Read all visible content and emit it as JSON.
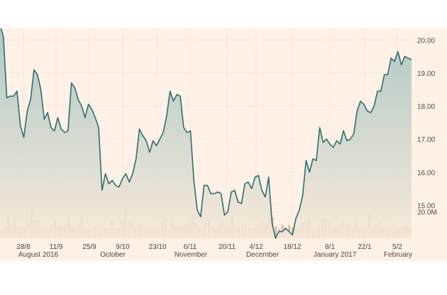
{
  "chart_data": {
    "type": "line",
    "title": "",
    "xlabel": "",
    "ylabel": "",
    "ylim": [
      14.0,
      20.35
    ],
    "yticks": [
      "20.00",
      "19.00",
      "18.00",
      "17.00",
      "16.00",
      "15.00"
    ],
    "y_tick_values": [
      20,
      19,
      18,
      17,
      16,
      15
    ],
    "x_tick_labels": [
      "28/8",
      "11/9",
      "25/9",
      "9/10",
      "23/10",
      "6/11",
      "20/11",
      "4/12",
      "18/12",
      "8/1",
      "22/1",
      "5/2"
    ],
    "x_month_labels": [
      "August 2016",
      "October",
      "November",
      "December",
      "January 2017",
      "February"
    ],
    "volume_label": "20.0M",
    "volume_tick_value": 20,
    "grid": true,
    "colors": {
      "background": "#fff1e5",
      "line": "#2e6e73",
      "area_top": "#9fc2bf",
      "area_bottom": "#f7e8d8",
      "volume_bars": "#d4bfb0",
      "grid": "#e6d4c4",
      "text": "#4d4845"
    },
    "series": [
      {
        "values": [
          20.45,
          20.1,
          18.25,
          18.3,
          18.3,
          18.45,
          17.4,
          17.05,
          17.85,
          18.2,
          19.1,
          18.95,
          18.5,
          17.6,
          17.8,
          17.35,
          17.25,
          17.65,
          17.3,
          17.2,
          17.25,
          18.7,
          18.55,
          18.2,
          18.0,
          17.65,
          18.05,
          17.9,
          17.65,
          17.35,
          15.45,
          15.95,
          15.65,
          15.75,
          15.6,
          15.55,
          15.8,
          15.95,
          15.7,
          15.95,
          16.4,
          17.3,
          17.1,
          16.95,
          16.6,
          16.95,
          16.8,
          17.0,
          17.2,
          17.7,
          18.45,
          18.15,
          18.35,
          18.3,
          17.35,
          17.2,
          17.25,
          15.75,
          14.85,
          14.65,
          15.6,
          15.6,
          15.35,
          15.35,
          15.4,
          15.35,
          14.7,
          14.8,
          15.4,
          15.45,
          15.1,
          15.05,
          15.65,
          15.7,
          15.5,
          15.85,
          15.9,
          15.45,
          15.25,
          15.85,
          14.45,
          14.0,
          14.2,
          14.2,
          14.3,
          14.2,
          14.1,
          14.6,
          14.85,
          15.3,
          16.35,
          16.0,
          16.4,
          16.35,
          17.35,
          16.9,
          17.0,
          16.85,
          16.75,
          16.95,
          16.85,
          17.25,
          16.95,
          17.0,
          17.15,
          17.85,
          18.15,
          18.05,
          17.85,
          17.8,
          18.0,
          18.45,
          18.45,
          18.95,
          18.95,
          19.45,
          19.35,
          19.65,
          19.25,
          19.5,
          19.45,
          19.4
        ]
      }
    ],
    "volume": [
      6,
      8,
      18,
      10,
      16,
      8,
      9,
      8,
      13,
      22,
      14,
      14,
      8,
      7,
      7,
      10,
      14,
      10,
      9,
      11,
      16,
      9,
      7,
      11,
      17,
      7,
      7,
      7,
      9,
      6,
      7,
      7,
      8,
      14,
      8,
      8,
      13,
      22,
      13,
      13,
      9,
      10,
      10,
      9,
      7,
      6,
      8,
      8,
      12,
      16,
      6,
      12,
      10,
      9,
      10,
      10,
      13,
      18,
      12,
      8,
      7,
      11,
      15,
      9,
      7,
      10,
      12,
      9,
      9,
      16,
      8,
      8,
      10,
      9,
      8,
      8,
      9,
      11,
      12,
      11,
      20,
      16,
      9,
      7,
      10,
      8,
      10,
      8,
      7,
      8,
      12,
      15,
      16,
      6,
      7,
      10,
      16,
      15,
      13,
      8,
      9,
      10,
      14,
      11,
      10,
      7,
      16,
      10,
      8,
      8,
      18,
      9,
      10,
      12,
      8,
      7,
      6,
      5,
      7,
      8,
      9,
      10,
      7
    ]
  }
}
